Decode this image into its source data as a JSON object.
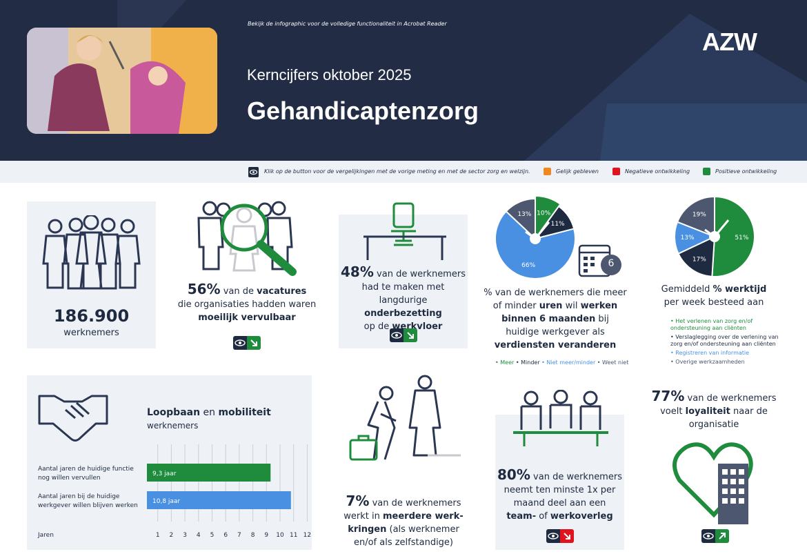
{
  "header": {
    "hint": "Bekijk de infographic voor de volledige functionaliteit in Acrobat Reader",
    "subtitle": "Kerncijfers oktober 2025",
    "title": "Gehandicaptenzorg",
    "logo": "AZW"
  },
  "legend": {
    "instruction": "Klik op de button voor de vergelijkingen met de vorige meting en met de sector zorg en welzijn.",
    "items": [
      {
        "label": "Gelijk gebleven",
        "color": "#f08a1e"
      },
      {
        "label": "Negatieve ontwikkeling",
        "color": "#e0141e"
      },
      {
        "label": "Positieve ontwikkeling",
        "color": "#1e8c3c"
      }
    ]
  },
  "colors": {
    "navy": "#1e2a40",
    "green": "#1e8c3c",
    "blue": "#4a90e2",
    "gray": "#4d5870",
    "red": "#e0141e"
  },
  "workers": {
    "value": "186.900",
    "label": "werknemers"
  },
  "vacatures": {
    "pct": "56%",
    "l1a": "van de ",
    "l1b": "vacatures",
    "l2": "die organisaties hadden waren",
    "l3": "moeilijk vervulbaar"
  },
  "onderbezetting": {
    "pct": "48%",
    "l1": "van de werknemers",
    "l2": "had te maken met langdurige",
    "l3": "onderbezetting",
    "l4a": "op de ",
    "l4b": "werkvloer"
  },
  "uren": {
    "calendar_number": "6",
    "l1": "% van de werknemers die meer",
    "l2a": "of minder ",
    "l2b": "uren",
    "l2c": " wil ",
    "l2d": "werken",
    "l3a": "binnen 6 maanden",
    "l3b": " bij",
    "l4": "huidige werkgever als",
    "l5": "verdiensten veranderen",
    "legend": [
      "Meer",
      "Minder",
      "Niet meer/minder",
      "Weet niet"
    ],
    "slices": [
      {
        "label": "Meer",
        "value": 10,
        "color": "#1e8c3c",
        "text": "10%"
      },
      {
        "label": "Minder",
        "value": 11,
        "color": "#1e2a40",
        "text": "11%"
      },
      {
        "label": "Niet meer/minder",
        "value": 66,
        "color": "#4a90e2",
        "text": "66%"
      },
      {
        "label": "Weet niet",
        "value": 13,
        "color": "#4d5870",
        "text": "13%"
      }
    ]
  },
  "werktijd": {
    "l1a": "Gemiddeld ",
    "l1b": "% werktijd",
    "l2": "per week besteed aan",
    "items": [
      {
        "text": "Het verlenen van zorg en/of ondersteuning aan cliënten",
        "color": "#1e8c3c"
      },
      {
        "text": "Verslaglegging over de verlening van zorg en/of ondersteuning aan cliënten",
        "color": "#1e2a40"
      },
      {
        "text": "Registreren van informatie",
        "color": "#4a90e2"
      },
      {
        "text": "Overige werkzaamheden",
        "color": "#4d5870"
      }
    ],
    "slices": [
      {
        "value": 51,
        "color": "#1e8c3c",
        "text": "51%"
      },
      {
        "value": 17,
        "color": "#1e2a40",
        "text": "17%"
      },
      {
        "value": 13,
        "color": "#4a90e2",
        "text": "13%"
      },
      {
        "value": 19,
        "color": "#4d5870",
        "text": "19%"
      }
    ]
  },
  "chart_data": {
    "type": "bar",
    "orientation": "horizontal",
    "title_a": "Loopbaan",
    "title_b": " en ",
    "title_c": "mobiliteit",
    "subtitle": "werknemers",
    "xlabel": "Jaren",
    "categories": [
      "Aantal jaren de huidige functie nog willen vervullen",
      "Aantal jaren bij de huidige werkgever willen blijven werken"
    ],
    "cat_lines": [
      [
        "Aantal jaren de huidige functie",
        "nog willen vervullen"
      ],
      [
        "Aantal jaren bij de huidige",
        "werkgever willen blijven werken"
      ]
    ],
    "values": [
      9.3,
      10.8
    ],
    "value_labels": [
      "9,3 jaar",
      "10,8 jaar"
    ],
    "colors": [
      "#1e8c3c",
      "#4a90e2"
    ],
    "xlim": [
      0,
      12
    ],
    "ticks": [
      1,
      2,
      3,
      4,
      5,
      6,
      7,
      8,
      9,
      10,
      11,
      12
    ]
  },
  "meerdere": {
    "pct": "7%",
    "l1": "van de werknemers",
    "l2a": "werkt in ",
    "l2b": "meerdere werk-",
    "l3a": "kringen",
    "l3b": " (als werknemer",
    "l4": "en/of als zelfstandige)"
  },
  "overleg": {
    "pct": "80%",
    "l1": "van de werknemers",
    "l2": "neemt ten minste 1x per",
    "l3": "maand deel aan een",
    "l4a": "team-",
    "l4b": " of ",
    "l4c": "werkoverleg"
  },
  "loyaliteit": {
    "pct": "77%",
    "l1": "van de werknemers",
    "l2a": "voelt ",
    "l2b": "loyaliteit",
    "l2c": " naar de",
    "l3": "organisatie"
  }
}
